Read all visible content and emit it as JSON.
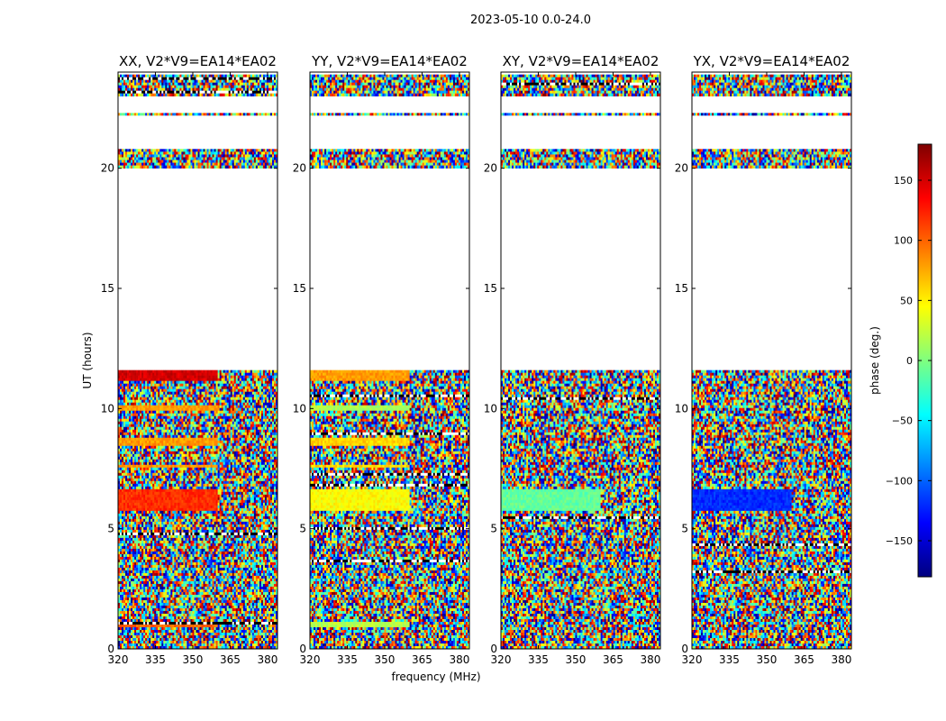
{
  "figure": {
    "suptitle": "2023-05-10 0.0-24.0",
    "xlabel": "frequency (MHz)",
    "ylabel": "UT (hours)"
  },
  "colorbar": {
    "label": "phase (deg.)",
    "range": [
      -180,
      180
    ],
    "ticks": [
      150,
      100,
      50,
      0,
      -50,
      -100,
      -150
    ],
    "tick_labels": [
      "150",
      "100",
      "50",
      "0",
      "−50",
      "−100",
      "−150"
    ],
    "colormap": [
      "#00007f",
      "#0000ff",
      "#007fff",
      "#00ffff",
      "#7fff7f",
      "#ffff00",
      "#ff7f00",
      "#ff0000",
      "#7f0000"
    ]
  },
  "chart_data": [
    {
      "type": "heatmap",
      "title": "XX, V2*V9=EA14*EA02",
      "xlabel": "frequency (MHz)",
      "ylabel": "UT (hours)",
      "xlim": [
        320,
        384
      ],
      "ylim": [
        0,
        24
      ],
      "xticks": [
        320,
        335,
        350,
        365,
        380
      ],
      "yticks": [
        0,
        5,
        10,
        15,
        20
      ],
      "value": "phase (deg.)",
      "data_intervals_hours": [
        [
          0,
          11.6
        ],
        [
          20,
          20.8
        ],
        [
          22.2,
          22.3
        ],
        [
          23,
          23.9
        ]
      ],
      "coherent_phase_deg": [
        [
          0.9,
          1.1,
          100
        ],
        [
          5.7,
          6.6,
          120
        ],
        [
          7.5,
          7.7,
          80
        ],
        [
          8.5,
          8.8,
          80
        ],
        [
          9.9,
          10.1,
          80
        ],
        [
          11.2,
          11.6,
          150
        ]
      ]
    },
    {
      "type": "heatmap",
      "title": "YY, V2*V9=EA14*EA02",
      "xlabel": "frequency (MHz)",
      "ylabel": "UT (hours)",
      "xlim": [
        320,
        384
      ],
      "ylim": [
        0,
        24
      ],
      "xticks": [
        320,
        335,
        350,
        365,
        380
      ],
      "yticks": [
        0,
        5,
        10,
        15,
        20
      ],
      "value": "phase (deg.)",
      "data_intervals_hours": [
        [
          0,
          11.6
        ],
        [
          20,
          20.8
        ],
        [
          22.2,
          22.3
        ],
        [
          23,
          23.9
        ]
      ],
      "coherent_phase_deg": [
        [
          0.9,
          1.1,
          20
        ],
        [
          5.7,
          6.6,
          45
        ],
        [
          7.5,
          7.7,
          60
        ],
        [
          8.5,
          8.8,
          60
        ],
        [
          9.9,
          10.1,
          15
        ],
        [
          11.2,
          11.6,
          80
        ]
      ]
    },
    {
      "type": "heatmap",
      "title": "XY, V2*V9=EA14*EA02",
      "xlabel": "frequency (MHz)",
      "ylabel": "UT (hours)",
      "xlim": [
        320,
        384
      ],
      "ylim": [
        0,
        24
      ],
      "xticks": [
        320,
        335,
        350,
        365,
        380
      ],
      "yticks": [
        0,
        5,
        10,
        15,
        20
      ],
      "value": "phase (deg.)",
      "data_intervals_hours": [
        [
          0,
          11.6
        ],
        [
          20,
          20.8
        ],
        [
          22.2,
          22.3
        ],
        [
          23,
          23.9
        ]
      ],
      "coherent_phase_deg": [
        [
          5.7,
          6.6,
          -10
        ]
      ]
    },
    {
      "type": "heatmap",
      "title": "YX, V2*V9=EA14*EA02",
      "xlabel": "frequency (MHz)",
      "ylabel": "UT (hours)",
      "xlim": [
        320,
        384
      ],
      "ylim": [
        0,
        24
      ],
      "xticks": [
        320,
        335,
        350,
        365,
        380
      ],
      "yticks": [
        0,
        5,
        10,
        15,
        20
      ],
      "value": "phase (deg.)",
      "data_intervals_hours": [
        [
          0,
          11.6
        ],
        [
          20,
          20.8
        ],
        [
          22.2,
          22.3
        ],
        [
          23,
          23.9
        ]
      ],
      "coherent_phase_deg": [
        [
          5.7,
          6.6,
          -120
        ]
      ]
    }
  ]
}
